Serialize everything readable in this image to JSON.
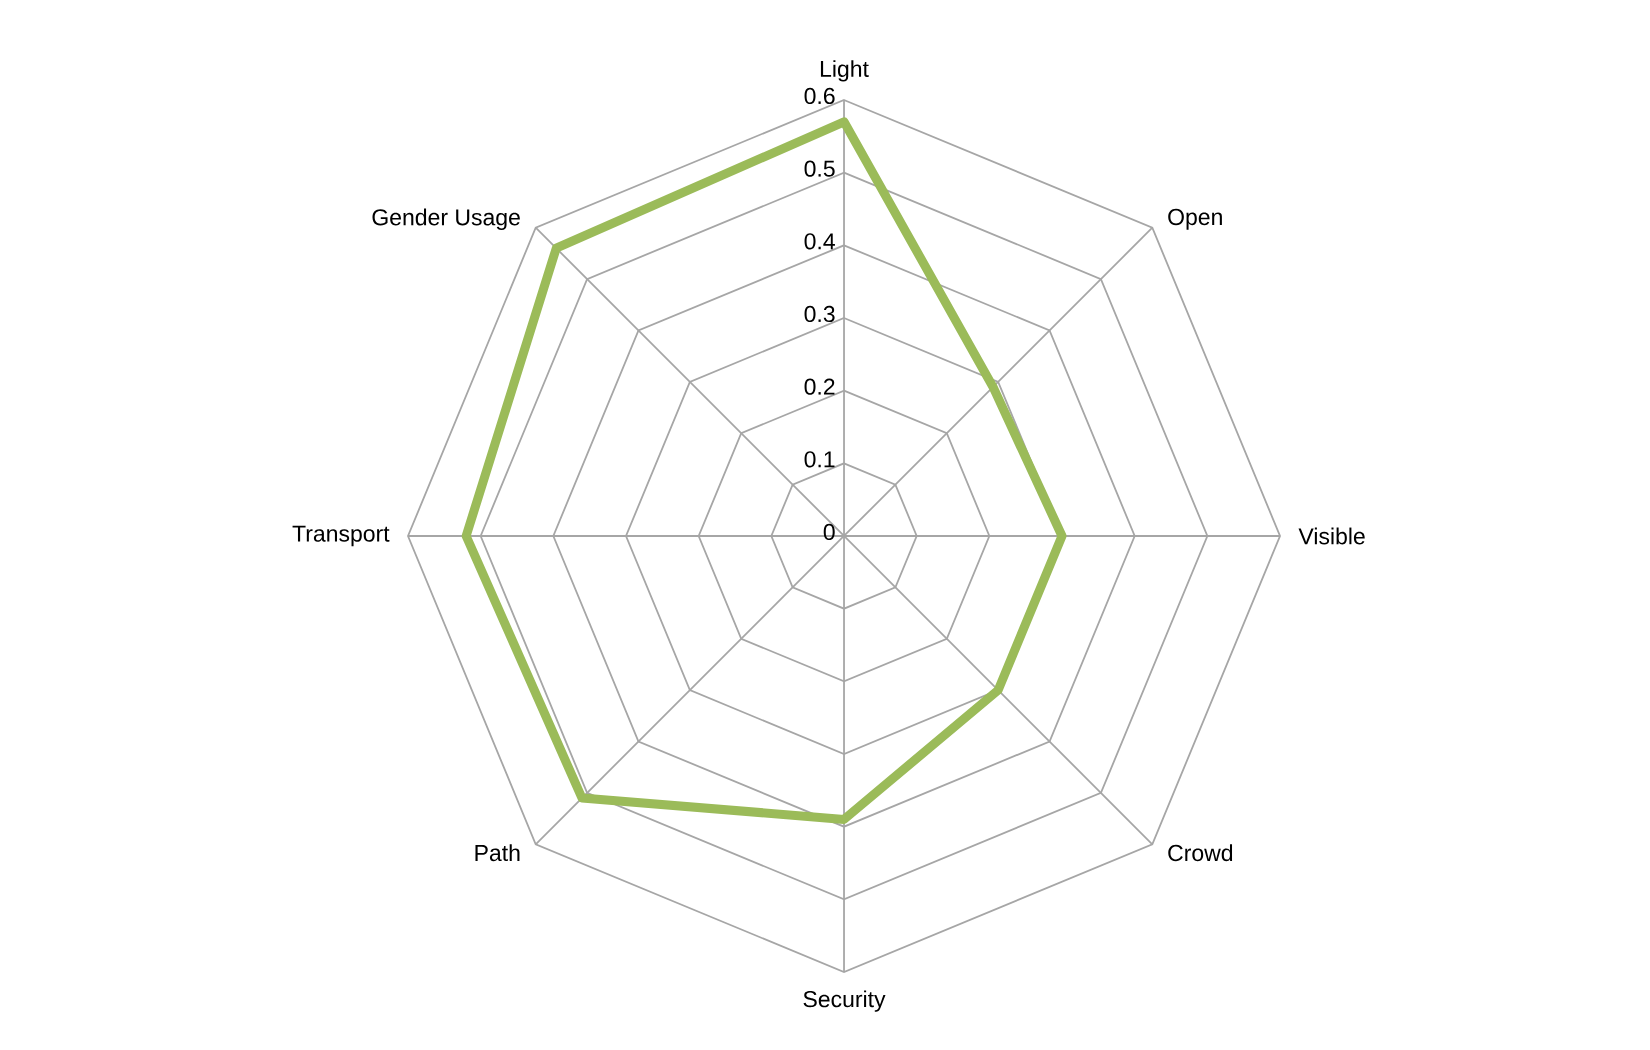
{
  "chart_data": {
    "type": "radar",
    "categories": [
      "Light",
      "Open",
      "Visible",
      "Crowd",
      "Security",
      "Path",
      "Transport",
      "Gender Usage"
    ],
    "series": [
      {
        "color": "#9bbb59",
        "values": [
          0.57,
          0.29,
          0.3,
          0.3,
          0.39,
          0.51,
          0.52,
          0.56
        ]
      }
    ],
    "ylim": [
      0,
      0.6
    ],
    "yticks": [
      0,
      0.1,
      0.2,
      0.3,
      0.4,
      0.5,
      0.6
    ],
    "grid": true,
    "marker": "none",
    "line_style": "solid"
  }
}
